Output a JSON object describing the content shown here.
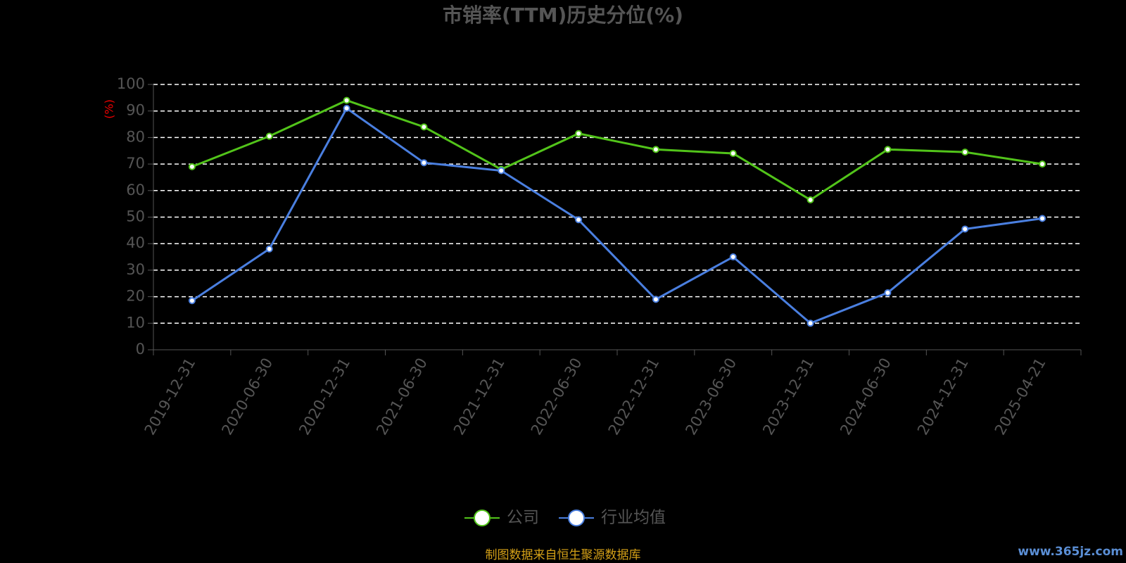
{
  "chart_data": {
    "type": "line",
    "title": "市销率(TTM)历史分位(%)",
    "y_label": "(%)",
    "categories": [
      "2019-12-31",
      "2020-06-30",
      "2020-12-31",
      "2021-06-30",
      "2021-12-31",
      "2022-06-30",
      "2022-12-31",
      "2023-06-30",
      "2023-12-31",
      "2024-06-30",
      "2024-12-31",
      "2025-04-21"
    ],
    "series": [
      {
        "name": "公司",
        "color": "#52c41a",
        "values": [
          69,
          80.5,
          94,
          84,
          68,
          81.5,
          75.5,
          74,
          56.5,
          75.5,
          74.5,
          70
        ]
      },
      {
        "name": "行业均值",
        "color": "#4a7fe0",
        "values": [
          18.5,
          38,
          91,
          70.5,
          67.5,
          49,
          19,
          35,
          10,
          21.5,
          45.5,
          49.5
        ]
      }
    ],
    "ylim": [
      0,
      100
    ],
    "yticks": [
      0,
      10,
      20,
      30,
      40,
      50,
      60,
      70,
      80,
      90,
      100
    ],
    "grid": true,
    "source": "制图数据来自恒生聚源数据库",
    "watermark": "www.365jz.com"
  }
}
